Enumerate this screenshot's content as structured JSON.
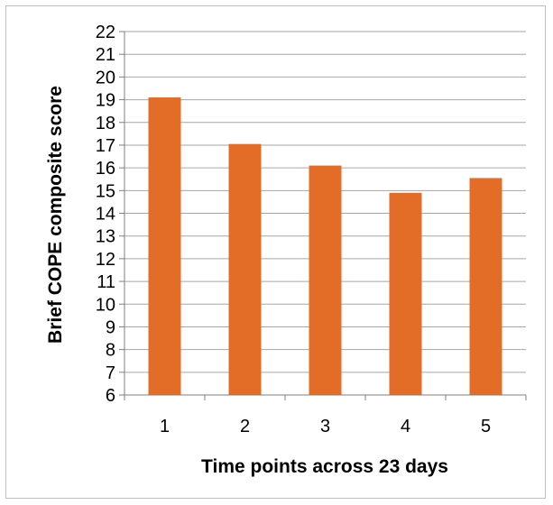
{
  "chart_data": {
    "type": "bar",
    "title": "",
    "xlabel": "Time points across 23 days",
    "ylabel": "Brief COPE composite score",
    "categories": [
      "1",
      "2",
      "3",
      "4",
      "5"
    ],
    "values": [
      19.1,
      17.05,
      16.1,
      14.9,
      15.55
    ],
    "ylim": [
      6,
      22
    ],
    "yticks": [
      "6",
      "7",
      "8",
      "9",
      "10",
      "11",
      "12",
      "13",
      "14",
      "15",
      "16",
      "17",
      "18",
      "19",
      "20",
      "21",
      "22"
    ],
    "grid": true,
    "legend": "none",
    "bar_color": "#E36C26",
    "grid_color": "#A6A6A6"
  }
}
